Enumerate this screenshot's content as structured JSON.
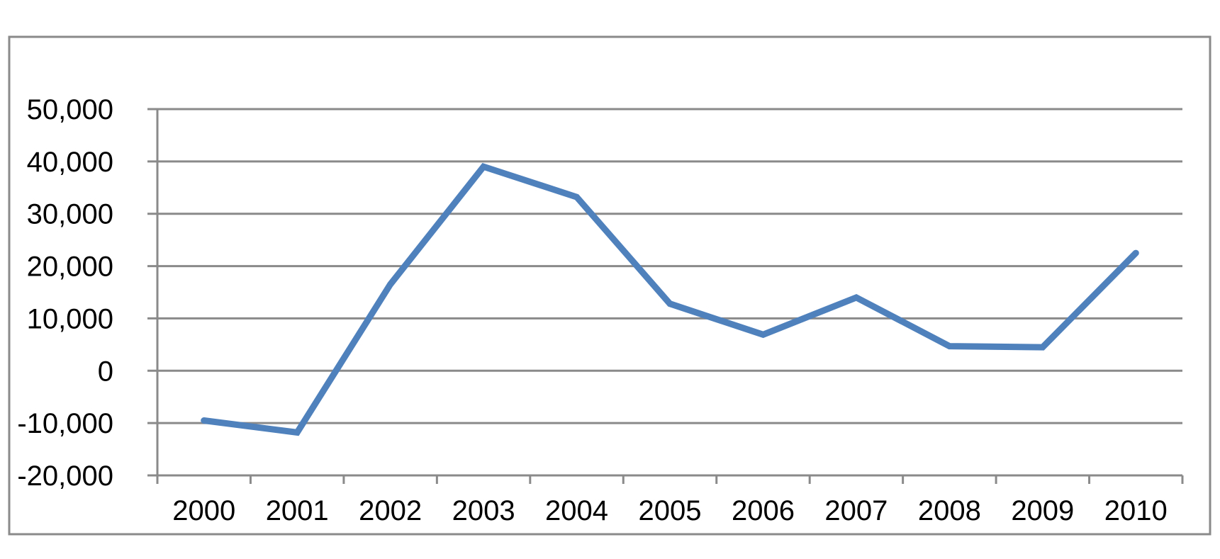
{
  "chart_data": {
    "type": "line",
    "title": "",
    "xlabel": "",
    "ylabel": "",
    "categories": [
      "2000",
      "2001",
      "2002",
      "2003",
      "2004",
      "2005",
      "2006",
      "2007",
      "2008",
      "2009",
      "2010"
    ],
    "series": [
      {
        "values": [
          -9500,
          -11800,
          16500,
          39000,
          33200,
          12800,
          6900,
          14000,
          4700,
          4500,
          22500
        ],
        "color": "#4f81bd"
      }
    ],
    "ylim": [
      -20000,
      50000
    ],
    "yticks": [
      50000,
      40000,
      30000,
      20000,
      10000,
      0,
      -10000,
      -20000
    ],
    "ytick_labels": [
      "50,000",
      "40,000",
      "30,000",
      "20,000",
      "10,000",
      "0",
      "-10,000",
      "-20,000"
    ],
    "grid": true,
    "legend": "none",
    "colors": {
      "gridline": "#8a8a8a",
      "frame": "#8a8a8a"
    }
  }
}
